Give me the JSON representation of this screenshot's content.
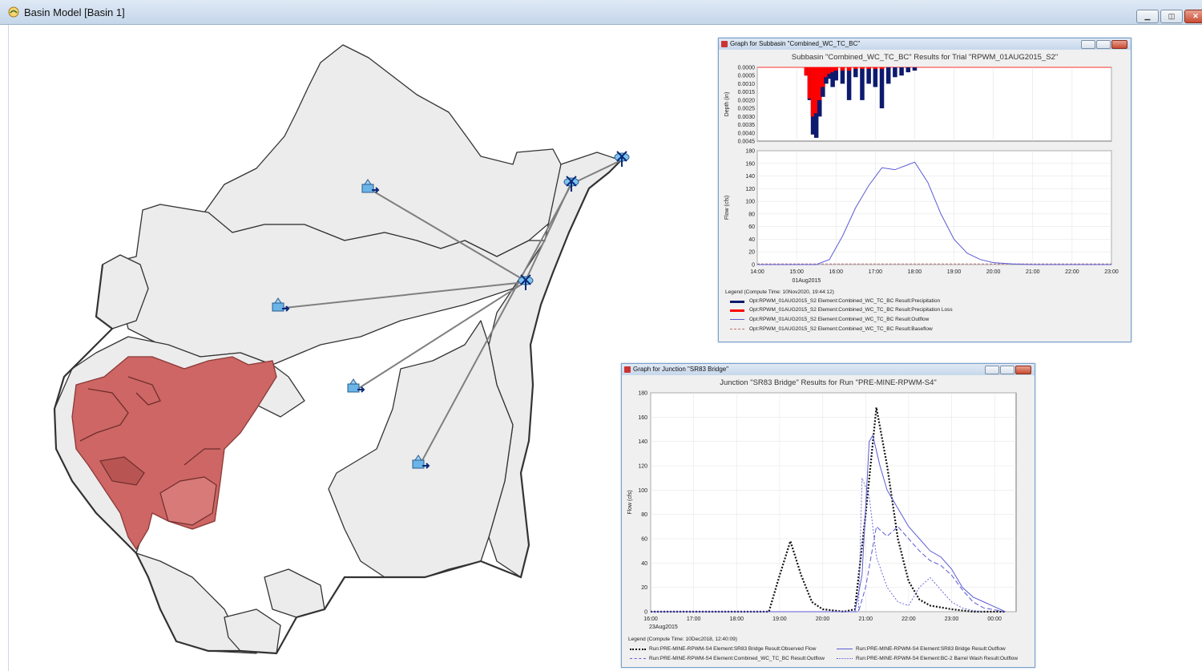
{
  "window": {
    "title": "Basin Model [Basin 1]",
    "icon": "basin-model-icon",
    "buttons": [
      "minimize",
      "maximize",
      "close"
    ]
  },
  "colors": {
    "subbasin_fill": "#eeeeee",
    "highlight_fill": "#cd6664",
    "outline": "#333333",
    "connector": "#7f7f7f",
    "precip": "#0d1a6e",
    "loss": "#ff0000",
    "outflow": "#5b5bd6",
    "baseflow": "#c07070"
  },
  "map_elements": {
    "subbasin_icons": [
      "subbasin-icon",
      "subbasin-icon",
      "subbasin-icon",
      "subbasin-icon"
    ],
    "junction_icons": [
      "junction-icon",
      "junction-icon",
      "junction-icon"
    ]
  },
  "subbasin_graph": {
    "window_title": "Graph for Subbasin \"Combined_WC_TC_BC\"",
    "title": "Subbasin \"Combined_WC_TC_BC\" Results for Trial \"RPWM_01AUG2015_S2\"",
    "depth_axis_label": "Depth (in)",
    "flow_axis_label": "Flow (cfs)",
    "date_label": "01Aug2015",
    "legend_header": "Legend (Compute Time: 10Nov2020, 19:44:12)",
    "legend": [
      "Opt:RPWM_01AUG2015_S2 Element:Combined_WC_TC_BC Result:Precipitation",
      "Opt:RPWM_01AUG2015_S2 Element:Combined_WC_TC_BC Result:Precipitation Loss",
      "Opt:RPWM_01AUG2015_S2 Element:Combined_WC_TC_BC Result:Outflow",
      "Opt:RPWM_01AUG2015_S2 Element:Combined_WC_TC_BC Result:Baseflow"
    ]
  },
  "junction_graph": {
    "window_title": "Graph for Junction \"SR83 Bridge\"",
    "title": "Junction \"SR83 Bridge\" Results for Run \"PRE-MINE-RPWM-S4\"",
    "flow_axis_label": "Flow (cfs)",
    "date_label": "23Aug2015",
    "legend_header": "Legend (Compute Time: 10Dec2018, 12:40:09)",
    "legend": [
      "Run:PRE-MINE-RPWM-S4 Element:SR83 Bridge Result:Observed Flow",
      "Run:PRE-MINE-RPWM-S4 Element:SR83 Bridge Result:Outflow",
      "Run:PRE-MINE-RPWM-S4 Element:Combined_WC_TC_BC Result:Outflow",
      "Run:PRE-MINE-RPWM-S4 Element:BC-2 Barrel Wash Result:Outflow"
    ]
  },
  "chart_data": [
    {
      "type": "bar",
      "title": "Subbasin \"Combined_WC_TC_BC\" Results for Trial \"RPWM_01AUG2015_S2\"",
      "ylabel": "Depth (in)",
      "ylim": [
        0.0045,
        0.0
      ],
      "yticks": [
        "0.0000",
        "0.0005",
        "0.0010",
        "0.0015",
        "0.0020",
        "0.0025",
        "0.0030",
        "0.0035",
        "0.0040",
        "0.0045"
      ],
      "x": [
        "15:15",
        "15:20",
        "15:25",
        "15:30",
        "15:35",
        "15:40",
        "15:45",
        "15:50",
        "15:55",
        "16:00",
        "16:10",
        "16:20",
        "16:30",
        "16:40",
        "16:50",
        "17:00",
        "17:10",
        "17:20",
        "17:30",
        "17:40",
        "17:50",
        "18:00"
      ],
      "series": [
        {
          "name": "Precipitation",
          "values": [
            0.0005,
            0.002,
            0.0041,
            0.0043,
            0.003,
            0.0018,
            0.001,
            0.0007,
            0.0012,
            0.0008,
            0.001,
            0.002,
            0.0006,
            0.002,
            0.001,
            0.0012,
            0.0025,
            0.001,
            0.0006,
            0.0005,
            0.0003,
            0.0002
          ]
        },
        {
          "name": "Precipitation Loss",
          "values": [
            0.0005,
            0.0019,
            0.003,
            0.0028,
            0.002,
            0.0012,
            0.0006,
            0.0004,
            0.0003,
            0.0002,
            0.0002,
            0.0002,
            0.0001,
            0.0001,
            0.0001,
            0.0001,
            0.0001,
            0,
            0,
            0,
            0,
            0
          ]
        }
      ]
    },
    {
      "type": "line",
      "ylabel": "Flow (cfs)",
      "ylim": [
        0,
        180
      ],
      "xlim": [
        "14:00",
        "23:00"
      ],
      "xticks": [
        "14:00",
        "15:00",
        "16:00",
        "17:00",
        "18:00",
        "19:00",
        "20:00",
        "21:00",
        "22:00",
        "23:00"
      ],
      "yticks": [
        0,
        20,
        40,
        60,
        80,
        100,
        120,
        140,
        160,
        180
      ],
      "series": [
        {
          "name": "Outflow",
          "x": [
            "14:00",
            "15:30",
            "15:50",
            "16:10",
            "16:30",
            "16:50",
            "17:10",
            "17:30",
            "17:50",
            "18:00",
            "18:20",
            "18:40",
            "19:00",
            "19:20",
            "19:40",
            "20:00",
            "20:30",
            "21:00",
            "23:00"
          ],
          "values": [
            0,
            0,
            8,
            45,
            90,
            125,
            153,
            150,
            158,
            162,
            130,
            80,
            40,
            18,
            8,
            3,
            1,
            0,
            0
          ]
        },
        {
          "name": "Baseflow",
          "x": [
            "14:00",
            "23:00"
          ],
          "values": [
            0,
            0
          ]
        }
      ]
    },
    {
      "type": "line",
      "title": "Junction \"SR83 Bridge\" Results for Run \"PRE-MINE-RPWM-S4\"",
      "ylabel": "Flow (cfs)",
      "ylim": [
        0,
        180
      ],
      "xlim": [
        "16:00",
        "00:30"
      ],
      "xticks": [
        "16:00",
        "17:00",
        "18:00",
        "19:00",
        "20:00",
        "21:00",
        "22:00",
        "23:00",
        "00:00"
      ],
      "yticks": [
        0,
        20,
        40,
        60,
        80,
        100,
        120,
        140,
        160,
        180
      ],
      "series": [
        {
          "name": "Observed Flow",
          "x": [
            "16:00",
            "18:45",
            "19:00",
            "19:15",
            "19:30",
            "19:45",
            "20:00",
            "20:30",
            "20:45",
            "21:00",
            "21:15",
            "21:30",
            "21:45",
            "22:00",
            "22:15",
            "22:30",
            "23:00",
            "23:30",
            "00:15"
          ],
          "values": [
            0,
            0,
            30,
            58,
            30,
            8,
            2,
            0,
            2,
            80,
            168,
            120,
            60,
            25,
            10,
            5,
            2,
            0,
            0
          ]
        },
        {
          "name": "SR83 Bridge Outflow",
          "x": [
            "16:00",
            "20:45",
            "20:55",
            "21:05",
            "21:10",
            "21:20",
            "21:30",
            "21:45",
            "22:00",
            "22:15",
            "22:30",
            "22:45",
            "23:00",
            "23:15",
            "23:30",
            "23:45",
            "00:00",
            "00:15"
          ],
          "values": [
            0,
            0,
            30,
            140,
            145,
            120,
            100,
            85,
            70,
            60,
            50,
            45,
            35,
            20,
            12,
            8,
            4,
            0
          ]
        },
        {
          "name": "Combined_WC_TC_BC Outflow",
          "x": [
            "16:00",
            "20:50",
            "21:00",
            "21:15",
            "21:30",
            "21:45",
            "22:00",
            "22:15",
            "22:30",
            "22:45",
            "23:00",
            "23:15",
            "23:30",
            "23:45",
            "00:15"
          ],
          "values": [
            0,
            0,
            20,
            70,
            62,
            70,
            60,
            50,
            42,
            38,
            30,
            18,
            8,
            3,
            0
          ]
        },
        {
          "name": "BC-2 Barrel Wash Outflow",
          "x": [
            "16:00",
            "20:50",
            "20:55",
            "21:05",
            "21:15",
            "21:30",
            "21:45",
            "22:00",
            "22:15",
            "22:30",
            "22:45",
            "23:00",
            "23:15",
            "23:30",
            "23:45"
          ],
          "values": [
            0,
            0,
            110,
            95,
            45,
            20,
            8,
            5,
            20,
            28,
            18,
            8,
            3,
            1,
            0
          ]
        }
      ]
    }
  ]
}
